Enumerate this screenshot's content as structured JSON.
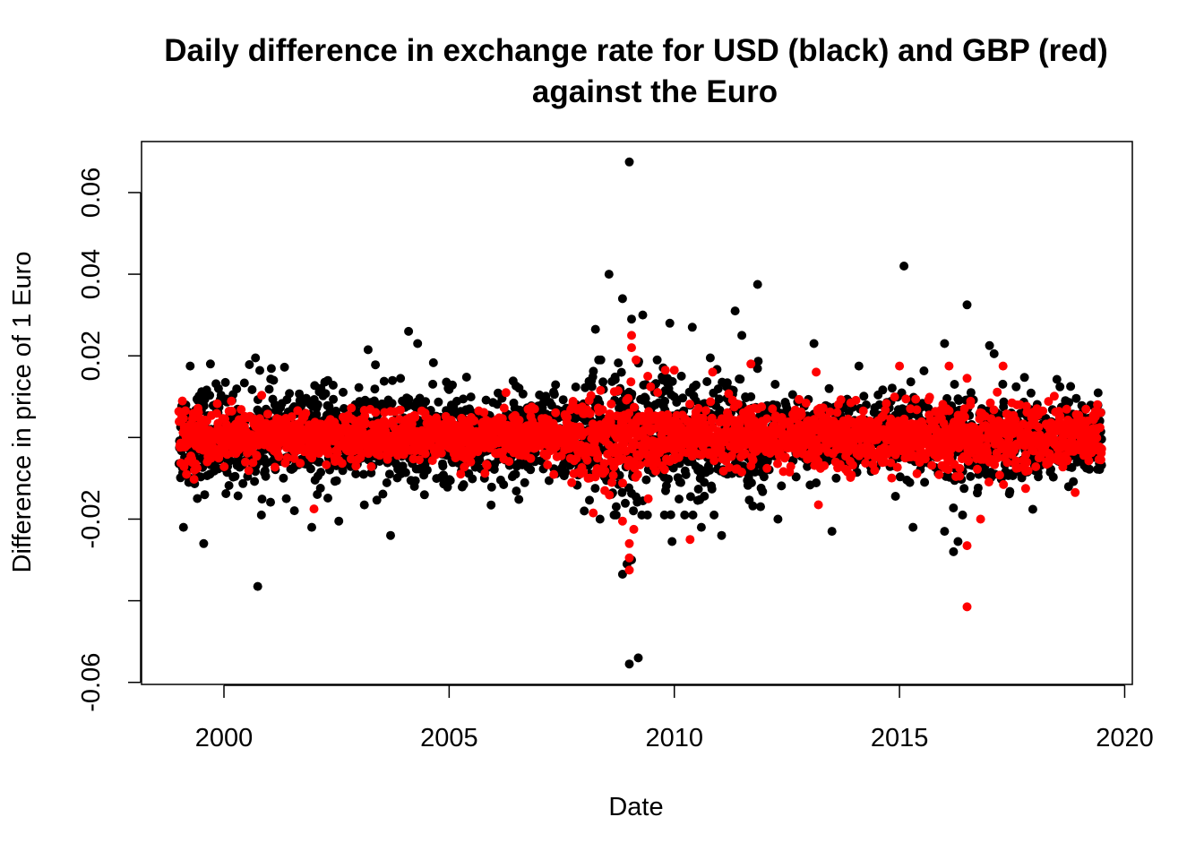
{
  "chart_data": {
    "type": "scatter",
    "title_line1": "Daily difference in exchange rate for USD (black) and GBP (red)",
    "title_line2": "against the Euro",
    "xlabel": "Date",
    "ylabel": "Difference in price of 1 Euro",
    "xlim": [
      1998.17,
      2020.17
    ],
    "ylim": [
      -0.0605,
      0.0725
    ],
    "x_ticks": [
      2000,
      2005,
      2010,
      2015,
      2020
    ],
    "y_ticks": [
      -0.06,
      -0.04,
      -0.02,
      0.0,
      0.02,
      0.04,
      0.06
    ],
    "y_tick_labels": [
      "-0.06",
      "",
      "-0.02",
      "",
      "0.02",
      "0.04",
      "0.06"
    ],
    "x_tick_labels": [
      "2000",
      "2005",
      "2010",
      "2015",
      "2020"
    ],
    "x_range_data": [
      1999.0,
      2019.5
    ],
    "series": [
      {
        "color": "#000000",
        "outliers": [
          [
            2009.0,
            0.0675
          ],
          [
            2009.0,
            -0.0555
          ],
          [
            2009.2,
            -0.054
          ],
          [
            2000.75,
            -0.0365
          ],
          [
            2008.55,
            0.04
          ],
          [
            2008.85,
            0.034
          ],
          [
            2008.85,
            -0.0335
          ],
          [
            2008.95,
            -0.031
          ],
          [
            2009.05,
            -0.03
          ],
          [
            2009.3,
            0.03
          ],
          [
            2009.05,
            0.029
          ],
          [
            2009.9,
            0.028
          ],
          [
            2010.4,
            0.027
          ],
          [
            2011.35,
            0.031
          ],
          [
            2011.85,
            0.0375
          ],
          [
            2015.1,
            0.042
          ],
          [
            2016.5,
            0.0325
          ],
          [
            2016.0,
            0.023
          ],
          [
            2017.0,
            0.0225
          ],
          [
            1999.1,
            -0.022
          ],
          [
            1999.55,
            -0.026
          ],
          [
            2001.95,
            -0.022
          ],
          [
            2003.7,
            -0.024
          ],
          [
            2003.2,
            0.0215
          ],
          [
            2004.1,
            0.026
          ],
          [
            2004.3,
            0.023
          ],
          [
            2002.55,
            -0.0205
          ],
          [
            2008.25,
            0.0265
          ],
          [
            2009.95,
            -0.0255
          ],
          [
            2013.1,
            0.023
          ],
          [
            2013.5,
            -0.023
          ],
          [
            2015.3,
            -0.022
          ],
          [
            2016.0,
            -0.023
          ],
          [
            2016.2,
            -0.028
          ],
          [
            2016.4,
            -0.019
          ],
          [
            2016.3,
            -0.0255
          ],
          [
            2012.3,
            -0.02
          ],
          [
            2010.6,
            -0.022
          ],
          [
            2011.05,
            -0.024
          ],
          [
            1999.25,
            0.0175
          ],
          [
            1999.7,
            0.018
          ],
          [
            2000.7,
            0.0195
          ],
          [
            2014.1,
            0.0175
          ],
          [
            2017.1,
            0.0205
          ],
          [
            2010.8,
            0.0195
          ],
          [
            2011.5,
            0.025
          ],
          [
            2008.0,
            -0.018
          ],
          [
            2008.35,
            -0.02
          ],
          [
            2018.8,
            0.0125
          ]
        ]
      },
      {
        "color": "#ff0000",
        "outliers": [
          [
            2016.5,
            -0.0415
          ],
          [
            2016.5,
            -0.0265
          ],
          [
            2009.0,
            -0.0325
          ],
          [
            2009.0,
            -0.0295
          ],
          [
            2009.0,
            -0.026
          ],
          [
            2008.85,
            -0.0205
          ],
          [
            2009.1,
            -0.0225
          ],
          [
            2009.05,
            0.025
          ],
          [
            2009.05,
            0.022
          ],
          [
            2009.15,
            0.019
          ],
          [
            2010.35,
            -0.025
          ],
          [
            2002.0,
            -0.0175
          ],
          [
            2016.8,
            -0.02
          ],
          [
            2013.2,
            -0.0165
          ],
          [
            2008.2,
            -0.0185
          ],
          [
            2015.0,
            0.0175
          ],
          [
            2016.1,
            0.0175
          ],
          [
            2016.5,
            0.0145
          ],
          [
            2017.3,
            0.0175
          ],
          [
            2009.8,
            0.0165
          ],
          [
            2010.0,
            0.0165
          ],
          [
            2011.7,
            0.018
          ],
          [
            2013.15,
            0.016
          ],
          [
            2010.85,
            0.016
          ],
          [
            2018.9,
            -0.0135
          ],
          [
            2017.8,
            -0.0125
          ]
        ]
      }
    ]
  }
}
